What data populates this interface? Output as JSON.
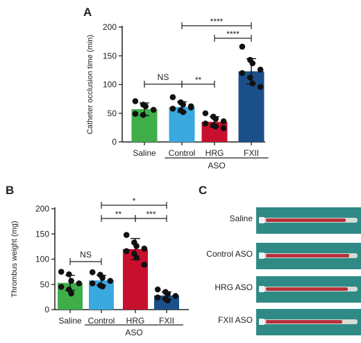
{
  "panels": {
    "a": "A",
    "b": "B",
    "c": "C"
  },
  "colors": {
    "saline": "#3fae49",
    "control": "#3aa9e0",
    "hrg": "#c8102e",
    "fxii": "#1b4f8a",
    "photo_bg": "#2f8a85",
    "catheter": "#b7313a"
  },
  "chart_data": [
    {
      "panel": "A",
      "type": "bar",
      "ylabel": "Catheter occlusion time (min)",
      "ylim": [
        0,
        200
      ],
      "yticks": [
        "0",
        "50",
        "100",
        "150",
        "200"
      ],
      "categories": [
        "Saline",
        "Control",
        "HRG",
        "FXII"
      ],
      "group_label": "ASO",
      "values": [
        57,
        61,
        35,
        123
      ],
      "sd": [
        11,
        9,
        9,
        22
      ],
      "points": [
        [
          71,
          65,
          62,
          56,
          49,
          47
        ],
        [
          78,
          69,
          65,
          62,
          58,
          55,
          52,
          60
        ],
        [
          50,
          44,
          40,
          36,
          32,
          29,
          27,
          24
        ],
        [
          166,
          143,
          137,
          126,
          120,
          112,
          102,
          96
        ]
      ],
      "significance": [
        {
          "label": "NS",
          "from": "Saline",
          "to": "Control"
        },
        {
          "label": "**",
          "from": "Control",
          "to": "HRG"
        },
        {
          "label": "****",
          "from": "HRG",
          "to": "FXII"
        },
        {
          "label": "****",
          "from": "Control",
          "to": "FXII"
        }
      ]
    },
    {
      "panel": "B",
      "type": "bar",
      "ylabel": "Thrombus weight (mg)",
      "ylim": [
        0,
        200
      ],
      "yticks": [
        "0",
        "50",
        "100",
        "150",
        "200"
      ],
      "categories": [
        "Saline",
        "Control",
        "HRG",
        "FXII"
      ],
      "group_label": "ASO",
      "values": [
        53,
        58,
        120,
        28
      ],
      "sd": [
        15,
        10,
        21,
        7
      ],
      "points": [
        [
          75,
          70,
          57,
          52,
          45,
          40,
          32
        ],
        [
          74,
          69,
          63,
          57,
          52,
          48,
          46
        ],
        [
          148,
          133,
          126,
          121,
          116,
          111,
          103,
          89
        ],
        [
          40,
          35,
          31,
          27,
          24,
          21,
          18
        ]
      ],
      "significance": [
        {
          "label": "NS",
          "from": "Saline",
          "to": "Control"
        },
        {
          "label": "**",
          "from": "Control",
          "to": "HRG"
        },
        {
          "label": "***",
          "from": "HRG",
          "to": "FXII"
        },
        {
          "label": "*",
          "from": "Control",
          "to": "FXII"
        }
      ]
    }
  ],
  "photos": [
    {
      "label": "Saline",
      "icon": "catheter-photo"
    },
    {
      "label": "Control ASO",
      "icon": "catheter-photo"
    },
    {
      "label": "HRG ASO",
      "icon": "catheter-photo"
    },
    {
      "label": "FXII ASO",
      "icon": "catheter-photo"
    }
  ]
}
